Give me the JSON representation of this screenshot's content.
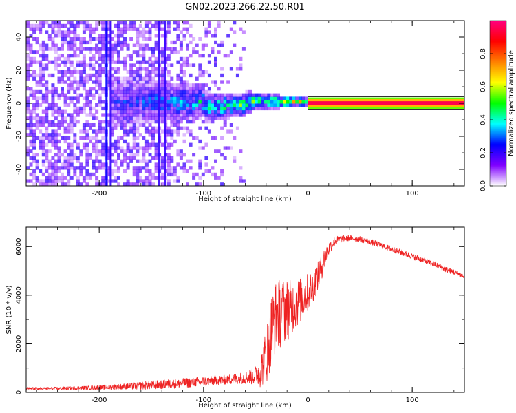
{
  "title": "GN02.2023.266.22.50.R01",
  "chart_data": [
    {
      "type": "heatmap",
      "xlabel": "Height of straight line (km)",
      "ylabel": "Frequency (Hz)",
      "xlim": [
        -270,
        150
      ],
      "ylim": [
        -50,
        50
      ],
      "xticks": [
        -200,
        -100,
        0,
        100
      ],
      "yticks": [
        -40,
        -20,
        0,
        20,
        40
      ],
      "colorbar": {
        "label": "Normalized spectral amplitude",
        "range": [
          0,
          1
        ],
        "ticks": [
          "0.0",
          "0.2",
          "0.4",
          "0.6",
          "0.8"
        ],
        "colors": [
          "#ffffff",
          "#8000ff",
          "#0000ff",
          "#00ffff",
          "#00ff00",
          "#ffff00",
          "#ff8000",
          "#ff0000",
          "#ff0080"
        ]
      },
      "features": [
        {
          "description_value": "broadband noise",
          "x_range": [
            -270,
            -80
          ],
          "y_range": [
            -50,
            50
          ],
          "amplitude": 0.15
        },
        {
          "description_value": "vertical stripe",
          "x": -193,
          "amplitude": 0.25
        },
        {
          "description_value": "vertical stripe",
          "x": -189,
          "amplitude": 0.2
        },
        {
          "description_value": "vertical stripe",
          "x": -143,
          "amplitude": 0.2
        },
        {
          "description_value": "vertical stripe",
          "x": -137,
          "amplitude": 0.2
        },
        {
          "description_value": "converging band",
          "x_range": [
            -190,
            0
          ],
          "y_center": 0,
          "amplitude_range": [
            0.2,
            0.6
          ]
        },
        {
          "description_value": "steady tone",
          "x_range": [
            0,
            150
          ],
          "y": 0,
          "amplitude": 0.95
        }
      ]
    },
    {
      "type": "line",
      "xlabel": "Height of straight line (km)",
      "ylabel": "SNR (10 * v/v)",
      "xlim": [
        -270,
        150
      ],
      "ylim": [
        0,
        6800
      ],
      "xticks": [
        -200,
        -100,
        0,
        100
      ],
      "yticks": [
        0,
        2000,
        4000,
        6000
      ],
      "color": "#ee2222",
      "series": [
        {
          "x": [
            -270,
            -240,
            -210,
            -180,
            -150,
            -120,
            -100,
            -80,
            -60,
            -50,
            -45,
            -40,
            -35,
            -30,
            -25,
            -20,
            -15,
            -10,
            -5,
            0,
            5,
            10,
            15,
            20,
            25,
            30,
            40,
            50,
            60,
            70,
            80,
            90,
            100,
            110,
            120,
            130,
            140,
            150
          ],
          "y": [
            150,
            160,
            190,
            230,
            300,
            380,
            450,
            520,
            600,
            700,
            900,
            1500,
            2600,
            3200,
            3300,
            3400,
            3500,
            3700,
            3900,
            4100,
            4400,
            4800,
            5400,
            5900,
            6200,
            6300,
            6350,
            6300,
            6200,
            6050,
            5900,
            5750,
            5600,
            5450,
            5300,
            5100,
            4950,
            4750
          ],
          "noise": [
            60,
            60,
            80,
            120,
            180,
            200,
            200,
            200,
            250,
            400,
            700,
            1200,
            1500,
            1500,
            1400,
            1300,
            1100,
            1000,
            900,
            800,
            700,
            600,
            500,
            300,
            200,
            150,
            120,
            120,
            120,
            120,
            120,
            120,
            120,
            120,
            120,
            120,
            120,
            120
          ]
        }
      ]
    }
  ]
}
